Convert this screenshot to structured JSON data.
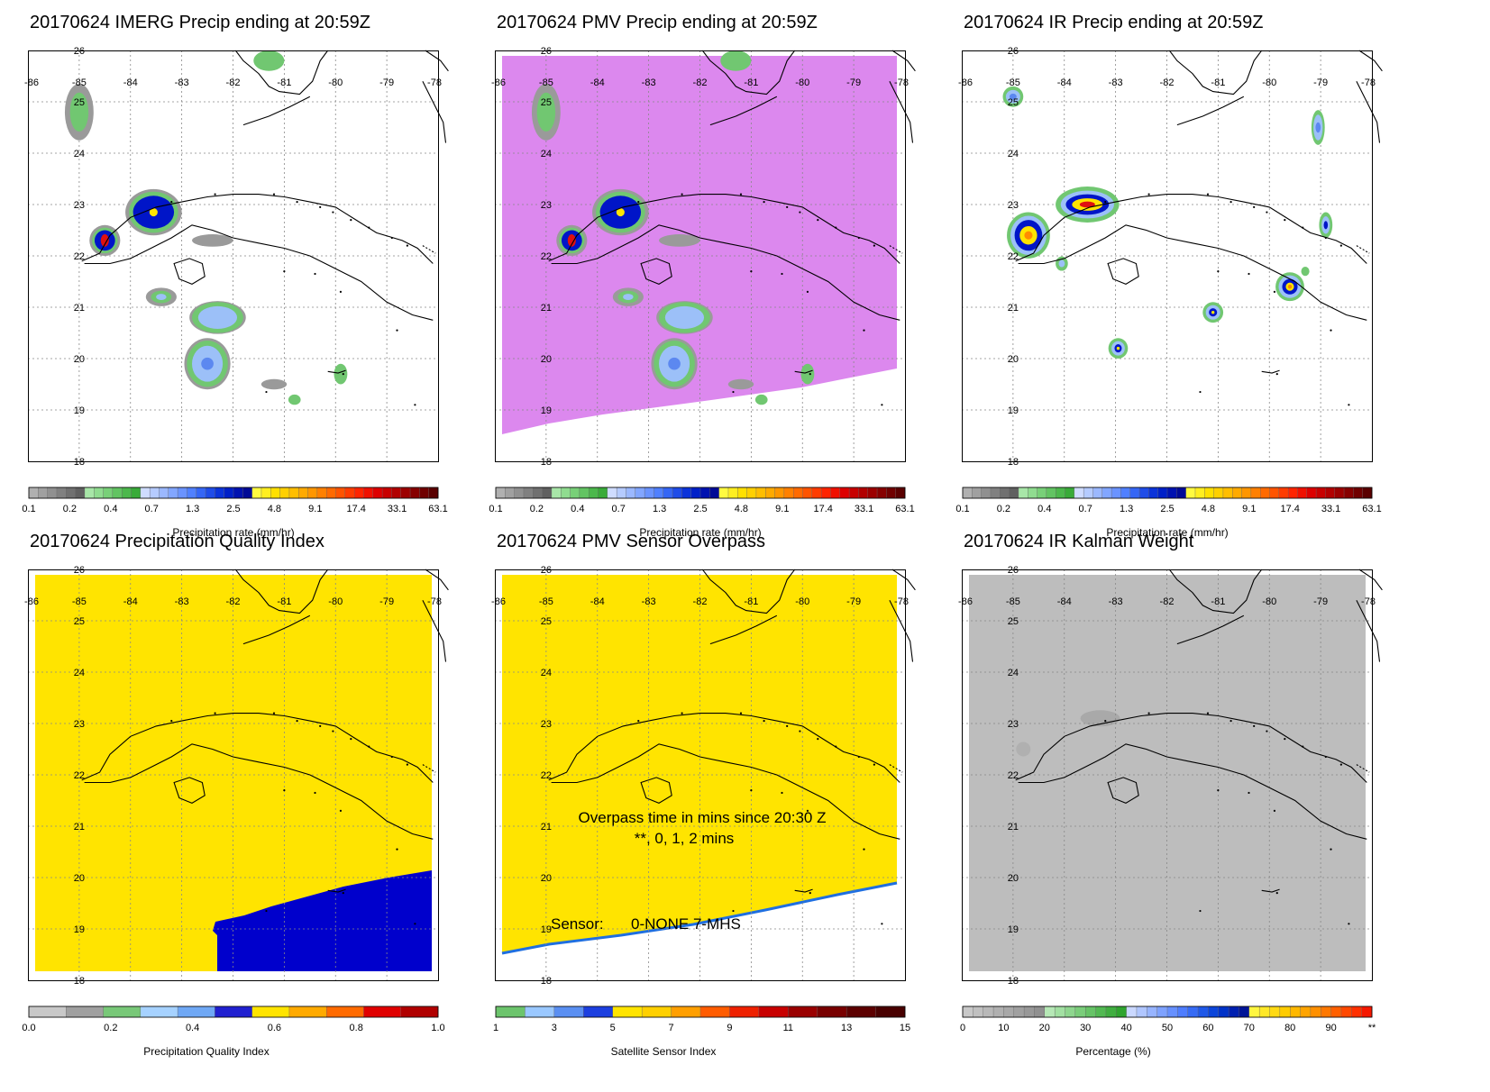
{
  "colors": {
    "yellow": "#ffe400",
    "gray_fill": "#bdbdbd",
    "magenta": "#dc88ee",
    "blue_region": "#0000cc"
  },
  "map_axes": {
    "lon_labels": [
      "-86",
      "-85",
      "-84",
      "-83",
      "-82",
      "-81",
      "-80",
      "-79",
      "-78"
    ],
    "lat_labels": [
      "26",
      "25",
      "24",
      "23",
      "22",
      "21",
      "20",
      "19",
      "18"
    ]
  },
  "colorbars": {
    "precip": {
      "labels": [
        "0.1",
        "0.2",
        "0.4",
        "0.7",
        "1.3",
        "2.5",
        "4.8",
        "9.1",
        "17.4",
        "33.1",
        "63.1"
      ],
      "colors": [
        "#b0b0b0",
        "#a0a0a0",
        "#909090",
        "#808080",
        "#707070",
        "#606060",
        "#a8e6a8",
        "#90dc90",
        "#78d078",
        "#62c462",
        "#4cb84c",
        "#39ab39",
        "#cfdcff",
        "#b5cbff",
        "#9bb8ff",
        "#82a6ff",
        "#6a93ff",
        "#5080ff",
        "#3566f5",
        "#1f4ce8",
        "#0b33da",
        "#0020c8",
        "#0012b0",
        "#000a96",
        "#fffa40",
        "#ffee20",
        "#ffe000",
        "#ffd000",
        "#ffbe00",
        "#ffaa00",
        "#ff9600",
        "#ff8000",
        "#ff6a00",
        "#ff5400",
        "#ff3c00",
        "#ff2400",
        "#f01000",
        "#dd0000",
        "#c80000",
        "#b20000",
        "#9c0000",
        "#860000",
        "#700000",
        "#5a0000"
      ],
      "title": "Precipitation rate (mm/hr)"
    },
    "quality": {
      "labels": [
        "0.0",
        "0.2",
        "0.4",
        "0.6",
        "0.8",
        "1.0"
      ],
      "colors": [
        "#c8c8c8",
        "#a0a0a0",
        "#78c878",
        "#a6d2ff",
        "#6fa8f5",
        "#2020d0",
        "#ffe400",
        "#ffaa00",
        "#ff6a00",
        "#e00000",
        "#b00000"
      ],
      "title": "Precipitation Quality Index"
    },
    "sensor": {
      "labels": [
        "1",
        "3",
        "5",
        "7",
        "9",
        "11",
        "13",
        "15"
      ],
      "colors": [
        "#6cc46c",
        "#9ac8ff",
        "#5a8ff2",
        "#1c3fe0",
        "#ffe400",
        "#ffd000",
        "#ff9f00",
        "#ff5c00",
        "#ee2000",
        "#c80000",
        "#9a0000",
        "#780000",
        "#5c0000",
        "#480000"
      ],
      "title": "Satellite Sensor Index"
    },
    "percent": {
      "labels": [
        "0",
        "10",
        "20",
        "30",
        "40",
        "50",
        "60",
        "70",
        "80",
        "90",
        "**"
      ],
      "colors": [
        "#c8c8c8",
        "#c0c0c0",
        "#b8b8b8",
        "#b0b0b0",
        "#a8a8a8",
        "#a0a0a0",
        "#989898",
        "#909090",
        "#b6e8b6",
        "#a2e0a2",
        "#8ed68e",
        "#7acd7a",
        "#66c366",
        "#52b952",
        "#40ae40",
        "#2fa42f",
        "#cad8ff",
        "#b0c6ff",
        "#97b4ff",
        "#7ea2ff",
        "#6690ff",
        "#4e7dff",
        "#366bf5",
        "#1f58e8",
        "#0c45da",
        "#0032c8",
        "#0020b0",
        "#001496",
        "#fff640",
        "#ffe828",
        "#ffda14",
        "#ffcc00",
        "#ffb800",
        "#ffa400",
        "#ff9000",
        "#ff7800",
        "#ff6000",
        "#ff4800",
        "#ff3000",
        "#f51800"
      ],
      "title": "Percentage (%)"
    }
  },
  "panels": {
    "imerg": {
      "title": "20170624 IMERG Precip ending at 20:59Z"
    },
    "pmv": {
      "title": "20170624 PMV Precip ending at 20:59Z"
    },
    "ir": {
      "title": "20170624 IR Precip ending at 20:59Z"
    },
    "quality": {
      "title": "20170624 Precipitation Quality Index"
    },
    "overpass": {
      "title": "20170624 PMV Sensor Overpass",
      "note_line1": "Overpass time in mins since 20:30 Z",
      "note_line2": "**, 0, 1, 2 mins",
      "sensor_label": "Sensor:",
      "sensor_values": "0-NONE  7-MHS"
    },
    "kalman": {
      "title": "20170624 IR Kalman Weight"
    }
  }
}
